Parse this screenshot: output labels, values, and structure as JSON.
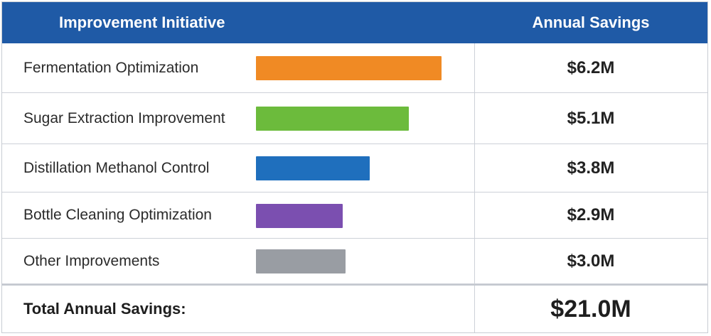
{
  "header": {
    "col1": "Improvement Initiative",
    "col2": "Annual Savings"
  },
  "chart_data": {
    "type": "bar",
    "categories": [
      "Fermentation Optimization",
      "Sugar Extraction Improvement",
      "Distillation Methanol Control",
      "Bottle Cleaning Optimization",
      "Other Improvements"
    ],
    "values": [
      6.2,
      5.1,
      3.8,
      2.9,
      3.0
    ],
    "value_labels": [
      "$6.2M",
      "$5.1M",
      "$3.8M",
      "$2.9M",
      "$3.0M"
    ],
    "colors": [
      "#f08a24",
      "#6cbb3c",
      "#1f6fbd",
      "#7b4fb0",
      "#999da3"
    ]
  },
  "total": {
    "label": "Total Annual Savings:",
    "value": "$21.0M"
  }
}
